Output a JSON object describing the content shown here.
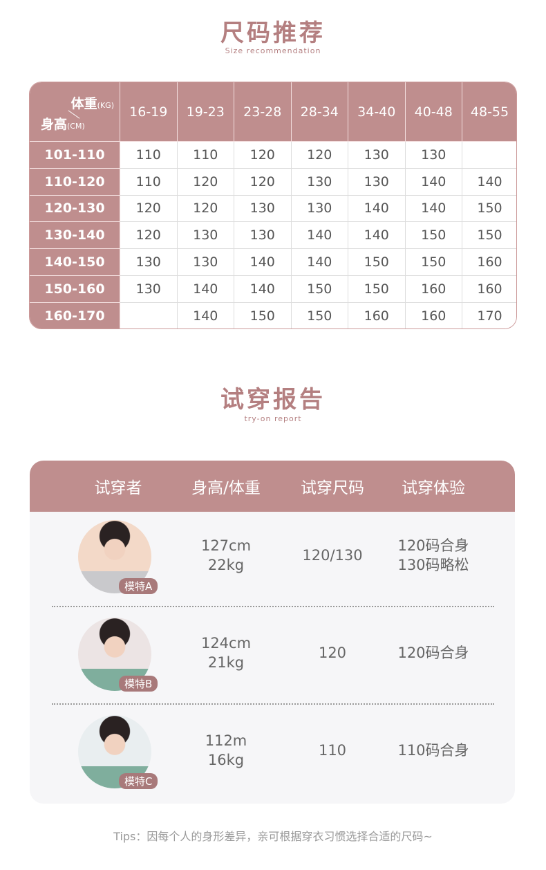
{
  "size_section": {
    "title": "尺码推荐",
    "subtitle": "Size recommendation",
    "corner": {
      "weight": "体重",
      "weight_unit": "(KG)",
      "height": "身高",
      "height_unit": "(CM)"
    },
    "weight_ranges": [
      "16-19",
      "19-23",
      "23-28",
      "28-34",
      "34-40",
      "40-48",
      "48-55"
    ],
    "rows": [
      {
        "height": "101-110",
        "sizes": [
          "110",
          "110",
          "120",
          "120",
          "130",
          "130",
          ""
        ]
      },
      {
        "height": "110-120",
        "sizes": [
          "110",
          "120",
          "120",
          "130",
          "130",
          "140",
          "140"
        ]
      },
      {
        "height": "120-130",
        "sizes": [
          "120",
          "120",
          "130",
          "130",
          "140",
          "140",
          "150"
        ]
      },
      {
        "height": "130-140",
        "sizes": [
          "120",
          "130",
          "130",
          "140",
          "140",
          "150",
          "150"
        ]
      },
      {
        "height": "140-150",
        "sizes": [
          "130",
          "130",
          "140",
          "140",
          "150",
          "150",
          "160"
        ]
      },
      {
        "height": "150-160",
        "sizes": [
          "130",
          "140",
          "140",
          "150",
          "150",
          "160",
          "160"
        ]
      },
      {
        "height": "160-170",
        "sizes": [
          "",
          "140",
          "150",
          "150",
          "160",
          "160",
          "170"
        ]
      }
    ]
  },
  "report_section": {
    "title": "试穿报告",
    "subtitle": "try-on report",
    "headers": [
      "试穿者",
      "身高/体重",
      "试穿尺码",
      "试穿体验"
    ],
    "models": [
      {
        "tag": "模特A",
        "height": "127cm",
        "weight": "22kg",
        "size": "120/130",
        "exp1": "120码合身",
        "exp2": "130码略松"
      },
      {
        "tag": "模特B",
        "height": "124cm",
        "weight": "21kg",
        "size": "120",
        "exp1": "120码合身",
        "exp2": ""
      },
      {
        "tag": "模特C",
        "height": "112m",
        "weight": "16kg",
        "size": "110",
        "exp1": "110码合身",
        "exp2": ""
      }
    ]
  },
  "tips": "Tips：因每个人的身形差异，亲可根据穿衣习惯选择合适的尺码~",
  "colors": {
    "accent": "#bf8e8e",
    "title": "#b47f80"
  }
}
